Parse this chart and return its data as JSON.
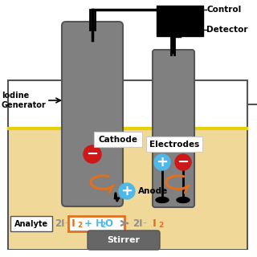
{
  "bg_tan": "#f0d898",
  "bg_white": "#ffffff",
  "gray_cyl": "#808080",
  "gray_dark": "#555555",
  "black": "#000000",
  "orange": "#e07020",
  "blue": "#50b8e8",
  "red": "#cc1818",
  "gray_text": "#909090",
  "stirrer_gray": "#666666",
  "yellow_line": "#e8d000",
  "label_control": "Control",
  "label_detector": "Detector",
  "label_iodine": "Iodine\nGenerator",
  "label_cathode": "Cathode",
  "label_anode": "Anode",
  "label_electrodes": "Electrodes",
  "label_analyte": "Analyte",
  "label_stirrer": "Stirrer"
}
